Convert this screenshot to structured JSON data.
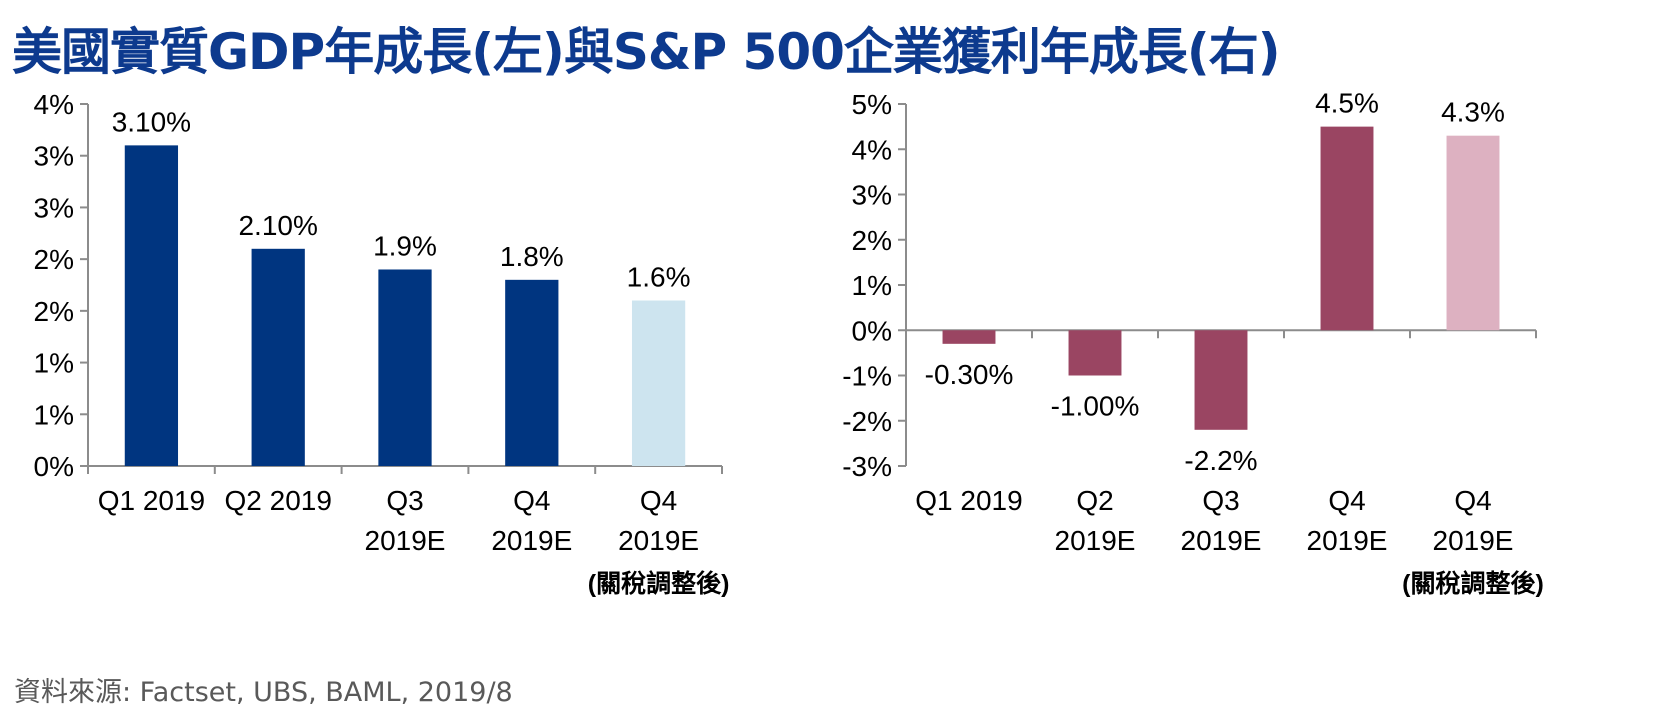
{
  "title": "美國實質GDP年成長(左)與S&P 500企業獲利年成長(右)",
  "source": "資料來源: Factset, UBS, BAML, 2019/8",
  "chart_data": [
    {
      "type": "bar",
      "categories": [
        [
          "Q1 2019"
        ],
        [
          "Q2 2019"
        ],
        [
          "Q3",
          "2019E"
        ],
        [
          "Q4",
          "2019E"
        ],
        [
          "Q4",
          "2019E"
        ]
      ],
      "values": [
        3.1,
        2.1,
        1.9,
        1.8,
        1.6
      ],
      "data_labels": [
        "3.10%",
        "2.10%",
        "1.9%",
        "1.8%",
        "1.6%"
      ],
      "yticks": [
        "0%",
        "1%",
        "1%",
        "2%",
        "2%",
        "3%",
        "3%",
        "4%"
      ],
      "ylim": [
        0,
        3.5
      ],
      "bar_colors": [
        "#003580",
        "#003580",
        "#003580",
        "#003580",
        "#cde4ef"
      ],
      "note": "(關稅調整後)",
      "grid": false
    },
    {
      "type": "bar",
      "categories": [
        [
          "Q1 2019"
        ],
        [
          "Q2",
          "2019E"
        ],
        [
          "Q3",
          "2019E"
        ],
        [
          "Q4",
          "2019E"
        ],
        [
          "Q4",
          "2019E"
        ]
      ],
      "values": [
        -0.3,
        -1.0,
        -2.2,
        4.5,
        4.3
      ],
      "data_labels": [
        "-0.30%",
        "-1.00%",
        "-2.2%",
        "4.5%",
        "4.3%"
      ],
      "yticks": [
        "-3%",
        "-2%",
        "-1%",
        "0%",
        "1%",
        "2%",
        "3%",
        "4%",
        "5%"
      ],
      "ylim": [
        -3,
        5
      ],
      "bar_colors": [
        "#9a4562",
        "#9a4562",
        "#9a4562",
        "#9a4562",
        "#ddb1c1"
      ],
      "note": "(關稅調整後)",
      "grid": false
    }
  ]
}
